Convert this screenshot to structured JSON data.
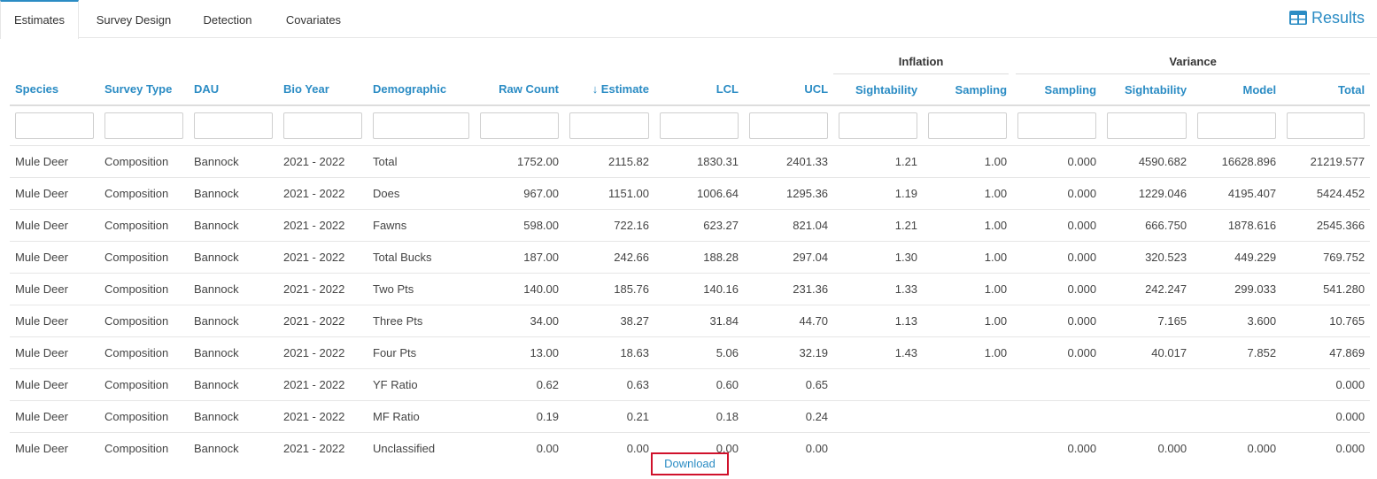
{
  "tabs": [
    {
      "label": "Estimates",
      "active": true
    },
    {
      "label": "Survey Design",
      "active": false
    },
    {
      "label": "Detection",
      "active": false
    },
    {
      "label": "Covariates",
      "active": false
    }
  ],
  "results_label": "Results",
  "accent_color": "#2b8cc4",
  "table": {
    "group_headers": {
      "inflation": "Inflation",
      "variance": "Variance"
    },
    "columns": [
      "Species",
      "Survey Type",
      "DAU",
      "Bio Year",
      "Demographic",
      "Raw Count",
      "↓ Estimate",
      "LCL",
      "UCL",
      "Sightability",
      "Sampling",
      "Sampling",
      "Sightability",
      "Model",
      "Total"
    ],
    "rows": [
      [
        "Mule Deer",
        "Composition",
        "Bannock",
        "2021 - 2022",
        "Total",
        "1752.00",
        "2115.82",
        "1830.31",
        "2401.33",
        "1.21",
        "1.00",
        "0.000",
        "4590.682",
        "16628.896",
        "21219.577"
      ],
      [
        "Mule Deer",
        "Composition",
        "Bannock",
        "2021 - 2022",
        "Does",
        "967.00",
        "1151.00",
        "1006.64",
        "1295.36",
        "1.19",
        "1.00",
        "0.000",
        "1229.046",
        "4195.407",
        "5424.452"
      ],
      [
        "Mule Deer",
        "Composition",
        "Bannock",
        "2021 - 2022",
        "Fawns",
        "598.00",
        "722.16",
        "623.27",
        "821.04",
        "1.21",
        "1.00",
        "0.000",
        "666.750",
        "1878.616",
        "2545.366"
      ],
      [
        "Mule Deer",
        "Composition",
        "Bannock",
        "2021 - 2022",
        "Total Bucks",
        "187.00",
        "242.66",
        "188.28",
        "297.04",
        "1.30",
        "1.00",
        "0.000",
        "320.523",
        "449.229",
        "769.752"
      ],
      [
        "Mule Deer",
        "Composition",
        "Bannock",
        "2021 - 2022",
        "Two Pts",
        "140.00",
        "185.76",
        "140.16",
        "231.36",
        "1.33",
        "1.00",
        "0.000",
        "242.247",
        "299.033",
        "541.280"
      ],
      [
        "Mule Deer",
        "Composition",
        "Bannock",
        "2021 - 2022",
        "Three Pts",
        "34.00",
        "38.27",
        "31.84",
        "44.70",
        "1.13",
        "1.00",
        "0.000",
        "7.165",
        "3.600",
        "10.765"
      ],
      [
        "Mule Deer",
        "Composition",
        "Bannock",
        "2021 - 2022",
        "Four Pts",
        "13.00",
        "18.63",
        "5.06",
        "32.19",
        "1.43",
        "1.00",
        "0.000",
        "40.017",
        "7.852",
        "47.869"
      ],
      [
        "Mule Deer",
        "Composition",
        "Bannock",
        "2021 - 2022",
        "YF Ratio",
        "0.62",
        "0.63",
        "0.60",
        "0.65",
        "",
        "",
        "",
        "",
        "",
        "0.000"
      ],
      [
        "Mule Deer",
        "Composition",
        "Bannock",
        "2021 - 2022",
        "MF Ratio",
        "0.19",
        "0.21",
        "0.18",
        "0.24",
        "",
        "",
        "",
        "",
        "",
        "0.000"
      ],
      [
        "Mule Deer",
        "Composition",
        "Bannock",
        "2021 - 2022",
        "Unclassified",
        "0.00",
        "0.00",
        "0.00",
        "0.00",
        "",
        "",
        "0.000",
        "0.000",
        "0.000",
        "0.000"
      ]
    ]
  },
  "download_label": "Download"
}
